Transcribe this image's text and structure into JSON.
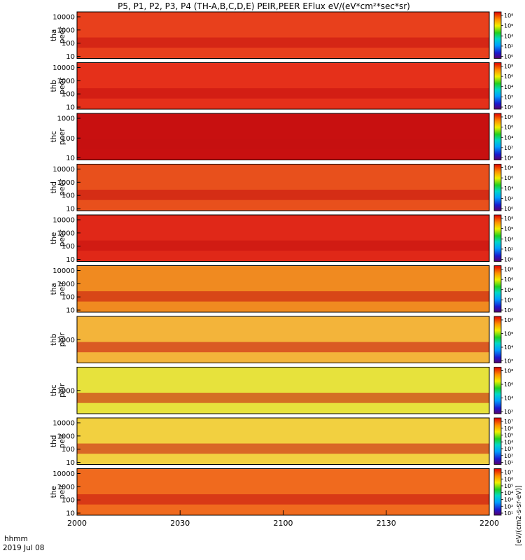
{
  "title": "P5, P1, P2, P3, P4 (TH-A,B,C,D,E) PEIR,PEER EFlux eV/(eV*cm²*sec*sr)",
  "x_axis": {
    "label_line1": "hhmm",
    "label_line2": "2019 Jul 08",
    "ticks": [
      "2000",
      "2030",
      "2100",
      "2130",
      "2200"
    ]
  },
  "colorbar_unit_label": "[eV/(cm2-s-sr-eV)]",
  "chart_data": {
    "type": "heatmap",
    "title": "P5, P1, P2, P3, P4 (TH-A,B,C,D,E) PEIR,PEER EFlux eV/(eV*cm²*sec*sr)",
    "x_range": [
      "2019-07-08 20:00",
      "2019-07-08 22:00"
    ],
    "x_ticks": [
      "2000",
      "2030",
      "2100",
      "2130",
      "2200"
    ],
    "y_scale": "log",
    "z_scale": "log",
    "colormap": "rainbow (purple-blue-cyan-green-yellow-orange-red)",
    "panels": [
      {
        "label1": "tha",
        "label2": "peer",
        "yticks": [
          "10000",
          "1000",
          "100",
          "10"
        ],
        "cb_ticks": [
          "10⁸",
          "10⁶",
          "10⁴",
          "10²",
          "10⁰"
        ],
        "z_range": [
          1,
          100000000
        ],
        "color": "#e8401c"
      },
      {
        "label1": "thb",
        "label2": "peer",
        "yticks": [
          "10000",
          "1000",
          "100",
          "10"
        ],
        "cb_ticks": [
          "10⁸",
          "10⁶",
          "10⁴",
          "10²",
          "10⁰"
        ],
        "z_range": [
          1,
          100000000
        ],
        "color": "#e5301a"
      },
      {
        "label1": "thc",
        "label2": "peer",
        "yticks": [
          "1000",
          "100",
          "10"
        ],
        "cb_ticks": [
          "10⁸",
          "10⁶",
          "10⁴",
          "10²",
          "10⁰"
        ],
        "z_range": [
          1,
          100000000
        ],
        "color": "#c81010"
      },
      {
        "label1": "thd",
        "label2": "peer",
        "yticks": [
          "10000",
          "1000",
          "100",
          "10"
        ],
        "cb_ticks": [
          "10⁸",
          "10⁶",
          "10⁴",
          "10²",
          "10⁰"
        ],
        "z_range": [
          1,
          100000000
        ],
        "color": "#e8501c"
      },
      {
        "label1": "the",
        "label2": "peer",
        "yticks": [
          "10000",
          "1000",
          "100",
          "10"
        ],
        "cb_ticks": [
          "10⁸",
          "10⁶",
          "10⁴",
          "10²",
          "10⁰"
        ],
        "z_range": [
          1,
          100000000
        ],
        "color": "#e02818"
      },
      {
        "label1": "tha",
        "label2": "peir",
        "yticks": [
          "10000",
          "1000",
          "100",
          "10"
        ],
        "cb_ticks": [
          "10⁸",
          "10⁶",
          "10⁴",
          "10²",
          "10⁰"
        ],
        "z_range": [
          1,
          100000000
        ],
        "color": "#f08a20"
      },
      {
        "label1": "thb",
        "label2": "peir",
        "yticks": [
          "1000"
        ],
        "cb_ticks": [
          "10⁸",
          "10⁶",
          "10⁴",
          "10²"
        ],
        "z_range": [
          100,
          100000000
        ],
        "color": "#f3b43a"
      },
      {
        "label1": "thc",
        "label2": "peir",
        "yticks": [
          "1000"
        ],
        "cb_ticks": [
          "10⁸",
          "10⁶",
          "10⁴",
          "10²"
        ],
        "z_range": [
          100,
          100000000
        ],
        "color": "#e7e23c"
      },
      {
        "label1": "thd",
        "label2": "peir",
        "yticks": [
          "10000",
          "1000",
          "100",
          "10"
        ],
        "cb_ticks": [
          "10⁷",
          "10⁶",
          "10⁵",
          "10⁴",
          "10³",
          "10²",
          "10¹"
        ],
        "z_range": [
          10,
          10000000
        ],
        "color": "#f2d040"
      },
      {
        "label1": "the",
        "label2": "peir",
        "yticks": [
          "10000",
          "1000",
          "100",
          "10"
        ],
        "cb_ticks": [
          "10⁷",
          "10⁶",
          "10⁵",
          "10⁴",
          "10³",
          "10²",
          "10¹"
        ],
        "z_range": [
          10,
          10000000
        ],
        "color": "#f06a1e"
      }
    ]
  }
}
